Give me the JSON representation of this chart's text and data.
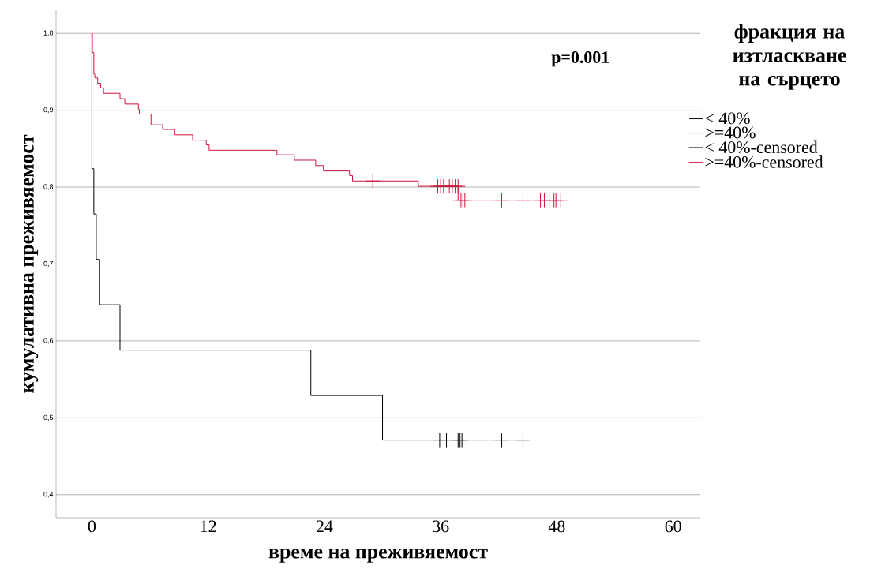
{
  "chart_data": {
    "type": "step",
    "xlabel": "време на преживяемост",
    "ylabel": "кумулативна преживяемост",
    "legend_title": "фракция на изтласкване на сърцето",
    "annotations": [
      "p=0.001"
    ],
    "xlim": [
      -3.7,
      62.8
    ],
    "ylim": [
      0.37,
      1.03
    ],
    "xticks": [
      0,
      12,
      24,
      36,
      48,
      60
    ],
    "yticks": [
      {
        "value": 0.4,
        "label": "0,4"
      },
      {
        "value": 0.5,
        "label": "0,5"
      },
      {
        "value": 0.6,
        "label": "0,6"
      },
      {
        "value": 0.7,
        "label": "0,7"
      },
      {
        "value": 0.8,
        "label": "0,8"
      },
      {
        "value": 0.9,
        "label": "0,9"
      },
      {
        "value": 1.0,
        "label": "1,0"
      }
    ],
    "grid": "y",
    "legend": "right",
    "series": [
      {
        "name": "< 40%",
        "color": "#000000",
        "x": [
          0,
          0,
          0.2,
          0.45,
          0.8,
          2.9,
          22.6,
          30.0,
          45.1
        ],
        "values": [
          1.0,
          0.824,
          0.765,
          0.706,
          0.647,
          0.588,
          0.529,
          0.471,
          0.471
        ]
      },
      {
        "name": ">=40%",
        "color": "#d0103a",
        "x": [
          0,
          0.05,
          0.2,
          0.3,
          0.6,
          0.9,
          1.2,
          2.9,
          3.4,
          4.8,
          4.9,
          6.1,
          7.3,
          8.55,
          10.4,
          11.8,
          12.1,
          19.1,
          20.9,
          23.1,
          23.9,
          26.6,
          26.9,
          33.7,
          37.8,
          49.0
        ],
        "values": [
          1.0,
          0.975,
          0.947,
          0.942,
          0.935,
          0.929,
          0.922,
          0.915,
          0.908,
          0.901,
          0.895,
          0.881,
          0.875,
          0.868,
          0.861,
          0.855,
          0.848,
          0.842,
          0.835,
          0.828,
          0.821,
          0.815,
          0.808,
          0.801,
          0.783,
          0.783
        ]
      },
      {
        "name": "< 40%-censored",
        "type": "scatter",
        "marker": "cross",
        "color": "#000000",
        "x": [
          35.9,
          36.6,
          37.8,
          38.0,
          38.2,
          42.3,
          44.5
        ],
        "values": [
          0.471,
          0.471,
          0.471,
          0.471,
          0.471,
          0.471,
          0.471
        ]
      },
      {
        "name": ">=40%-censored",
        "type": "scatter",
        "marker": "cross",
        "color": "#d0103a",
        "x": [
          29.0,
          35.7,
          36.0,
          36.3,
          36.6,
          36.9,
          37.2,
          37.5,
          37.8,
          37.9,
          38.1,
          38.3,
          38.5,
          42.3,
          44.5,
          46.3,
          46.7,
          47.2,
          47.7,
          47.9,
          48.4
        ],
        "values": [
          0.808,
          0.801,
          0.801,
          0.801,
          null,
          0.801,
          0.801,
          0.801,
          0.801,
          0.783,
          0.783,
          0.783,
          0.783,
          0.783,
          0.783,
          0.783,
          0.783,
          0.783,
          0.783,
          0.783,
          0.783
        ]
      }
    ]
  }
}
